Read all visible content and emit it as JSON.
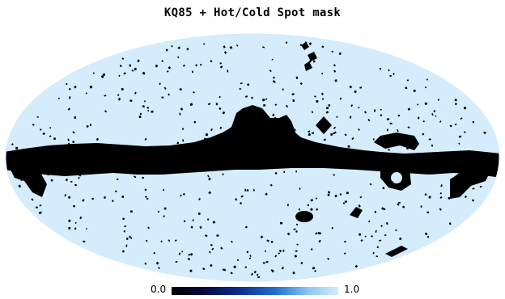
{
  "title": "KQ85 + Hot/Cold Spot mask",
  "colorbar": {
    "min_label": "0.0",
    "max_label": "1.0",
    "stops": [
      "#000000",
      "#05083c",
      "#0a2a8a",
      "#1e6fd0",
      "#8ec6f2",
      "#d4ecfc"
    ]
  },
  "map": {
    "projection": "mollweide",
    "unmasked_color": "#d4ecfc",
    "masked_color": "#000000"
  }
}
